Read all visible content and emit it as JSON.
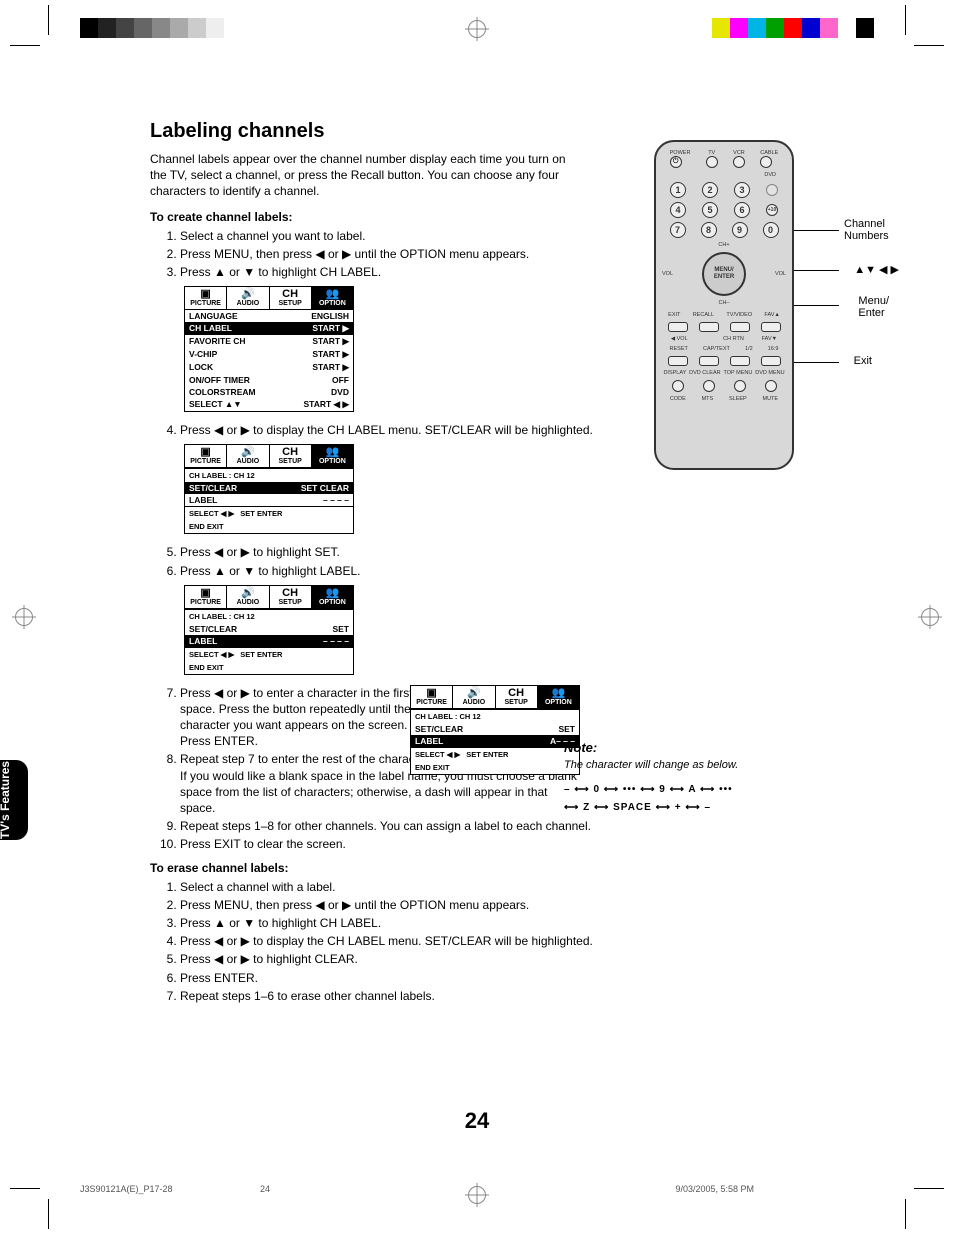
{
  "crop_colors_left": [
    "#000000",
    "#222222",
    "#444444",
    "#666666",
    "#888888",
    "#aaaaaa",
    "#cccccc",
    "#eeeeee",
    "#ffffff"
  ],
  "crop_colors_right": [
    "#e6e600",
    "#ff00ff",
    "#00b5e6",
    "#00a000",
    "#ff0000",
    "#0000d0",
    "#ff66cc",
    "#ffffff",
    "#000000"
  ],
  "title": "Labeling channels",
  "intro": "Channel labels appear over the channel number display each time you turn on the TV, select a channel, or press the Recall button. You can choose any four characters to identify a channel.",
  "create_head": "To create channel labels:",
  "erase_head": "To erase channel labels:",
  "steps_create": [
    "Select a channel you want to label.",
    "Press MENU, then press ◀ or ▶ until the OPTION menu appears.",
    "Press ▲ or ▼ to highlight CH LABEL."
  ],
  "steps_4": "Press ◀ or ▶ to display the CH LABEL menu. SET/CLEAR will be highlighted.",
  "steps_5": "Press ◀ or ▶ to highlight SET.",
  "steps_6": "Press ▲ or ▼ to highlight LABEL.",
  "steps_7": "Press ◀ or ▶ to enter a character in the first space. Press the button repeatedly until the character you want appears on the screen. Press ENTER.",
  "steps_8a": "Repeat step 7 to enter the rest of the characters.",
  "steps_8b": "If you would like a blank space in the label name, you must choose a blank space from the list of characters; otherwise, a dash will appear in that space.",
  "steps_9": "Repeat steps 1–8 for other channels. You can assign a label to each channel.",
  "steps_10": "Press EXIT to clear the screen.",
  "steps_erase": [
    "Select a channel with a label.",
    "Press MENU, then press ◀ or ▶ until the OPTION menu appears.",
    "Press ▲ or ▼ to highlight CH LABEL.",
    "Press ◀ or ▶ to display the CH LABEL menu. SET/CLEAR will be highlighted.",
    "Press ◀ or ▶ to highlight CLEAR.",
    "Press ENTER.",
    "Repeat steps 1–6 to erase other channel labels."
  ],
  "tabs": [
    "PICTURE",
    "AUDIO",
    "SETUP",
    "OPTION"
  ],
  "tab_icons": [
    "▣",
    "🔊",
    "CH",
    "👥"
  ],
  "menu1_rows": [
    [
      "LANGUAGE",
      "ENGLISH",
      false
    ],
    [
      "CH LABEL",
      "START  ▶",
      true
    ],
    [
      "FAVORITE CH",
      "START  ▶",
      false
    ],
    [
      "V-CHIP",
      "START  ▶",
      false
    ],
    [
      "LOCK",
      "START  ▶",
      false
    ],
    [
      "ON/OFF TIMER",
      "OFF",
      false
    ],
    [
      "COLORSTREAM",
      "DVD",
      false
    ],
    [
      "SELECT  ▲▼",
      "START        ◀ ▶",
      false
    ]
  ],
  "menu_head": "CH LABEL : CH 12",
  "menu2_rows": [
    [
      "SET/CLEAR",
      "SET CLEAR",
      true
    ],
    [
      "LABEL",
      "– – – –",
      false
    ]
  ],
  "menu3_rows": [
    [
      "SET/CLEAR",
      "SET",
      false
    ],
    [
      "LABEL",
      "– – – –",
      true
    ]
  ],
  "menu4_rows": [
    [
      "SET/CLEAR",
      "SET",
      false
    ],
    [
      "LABEL",
      "A– – –",
      true
    ]
  ],
  "menu_footer": [
    "SELECT  ◀ ▶",
    "SET        ENTER"
  ],
  "menu_footer2": [
    "END        EXIT",
    ""
  ],
  "remote": {
    "top_labels": [
      "POWER",
      "TV",
      "VCR",
      "CABLE"
    ],
    "dvd": "DVD",
    "plus10": "+10",
    "ch_plus": "CH+",
    "ch_minus": "CH–",
    "vol": "VOL",
    "center": "MENU/\nENTER",
    "row_labels_a": [
      "EXIT",
      "RECALL",
      "TV/VIDEO",
      "FAV▲"
    ],
    "row_labels_b": [
      "◀ VOL",
      "",
      "CH RTN",
      "FAV▼"
    ],
    "row_labels_c": [
      "RESET",
      "CAP/TEXT",
      "1/2",
      "16:9"
    ],
    "row_labels_d": [
      "DISPLAY",
      "DVD CLEAR",
      "TOP MENU",
      "DVD MENU"
    ],
    "row_labels_e": [
      "CODE",
      "MTS",
      "SLEEP",
      "MUTE"
    ]
  },
  "annot_channel": "Channel Numbers",
  "annot_arrows": "▲▼ ◀ ▶",
  "annot_menu": "Menu/\nEnter",
  "annot_exit": "Exit",
  "side_tab": "Using the TV's Features",
  "note_head": "Note:",
  "note_text": "The character will change as below.",
  "char_line1": "–  ⟷  0  ⟷  •••  ⟷  9  ⟷  A  ⟷  •••",
  "char_line2": "⟷  Z  ⟷  SPACE  ⟷  +  ⟷  –",
  "page_num": "24",
  "footer_left": "J3S90121A(E)_P17-28",
  "footer_mid": "24",
  "footer_right": "9/03/2005, 5:58 PM"
}
